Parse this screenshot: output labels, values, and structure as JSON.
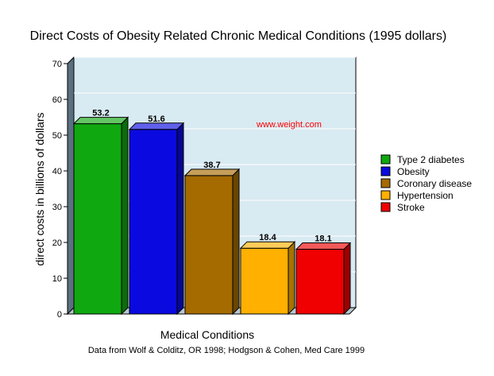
{
  "chart_data": {
    "type": "bar",
    "title": "Direct Costs of Obesity Related Chronic Medical Conditions (1995 dollars)",
    "xlabel": "Medical Conditions",
    "ylabel": "direct costs in billions of dollars",
    "ylim": [
      0,
      70
    ],
    "yticks": [
      "0",
      "10",
      "20",
      "30",
      "40",
      "50",
      "60",
      "70"
    ],
    "grid": true,
    "legend_position": "right",
    "categories": [
      "Type 2 diabetes",
      "Obesity",
      "Coronary disease",
      "Hypertension",
      "Stroke"
    ],
    "values": [
      53.2,
      51.6,
      38.7,
      18.4,
      18.1
    ],
    "value_labels": [
      "53.2",
      "51.6",
      "38.7",
      "18.4",
      "18.1"
    ],
    "colors": [
      "#10a810",
      "#0a0ae0",
      "#a56b00",
      "#ffb000",
      "#f00000"
    ],
    "annotation": "www.weight.com",
    "source": "Data from Wolf & Colditz, OR 1998; Hodgson & Cohen, Med Care 1999"
  },
  "colors": {
    "plot_background": "#d8eaf2",
    "left_wall": "#5a7080",
    "annotation": "#ff0000"
  }
}
